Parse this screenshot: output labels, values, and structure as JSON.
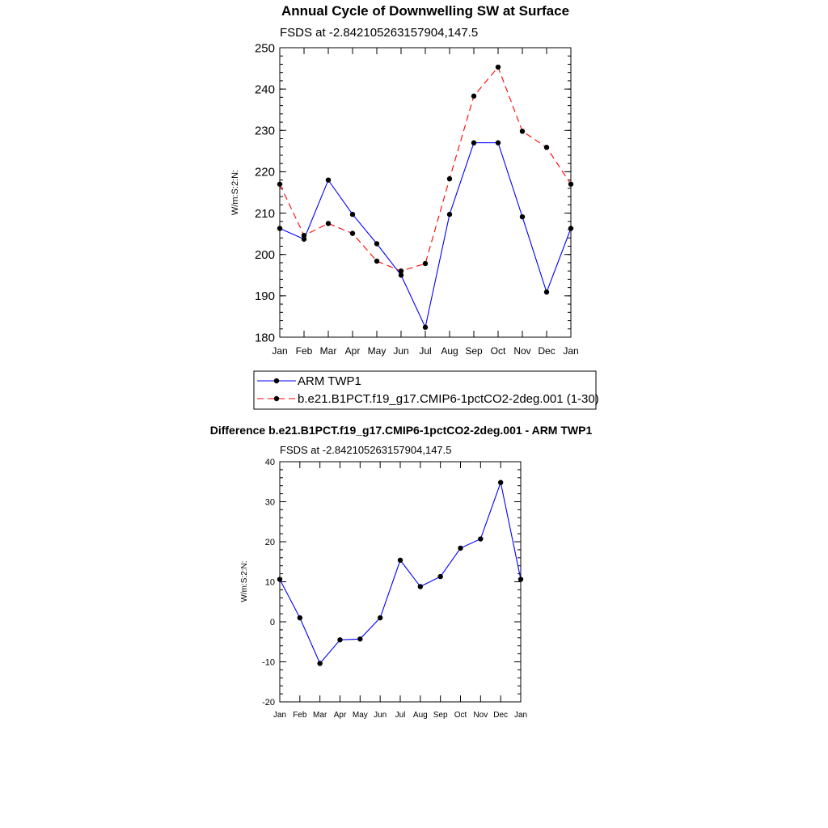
{
  "chart_data": [
    {
      "type": "line",
      "title": "Annual Cycle of Downwelling SW at Surface",
      "subtitle": "FSDS at -2.842105263157904,147.5",
      "ylabel": "W/m:S:2:N:",
      "xlabel": "",
      "categories": [
        "Jan",
        "Feb",
        "Mar",
        "Apr",
        "May",
        "Jun",
        "Jul",
        "Aug",
        "Sep",
        "Oct",
        "Nov",
        "Dec",
        "Jan"
      ],
      "ylim": [
        180,
        250
      ],
      "yticks": [
        180,
        190,
        200,
        210,
        220,
        230,
        240,
        250
      ],
      "legend_position": "below",
      "series": [
        {
          "name": "ARM TWP1",
          "color": "#0000ff",
          "dash": "solid",
          "values": [
            206.3,
            203.7,
            218.0,
            209.7,
            202.6,
            195.0,
            182.4,
            209.7,
            227.0,
            227.0,
            209.1,
            190.9,
            206.3
          ]
        },
        {
          "name": "b.e21.B1PCT.f19_g17.CMIP6-1pctCO2-2deg.001 (1-30)",
          "color": "#ff0000",
          "dash": "dashed",
          "values": [
            217.0,
            204.6,
            207.5,
            205.1,
            198.4,
            196.0,
            197.8,
            218.3,
            238.3,
            245.3,
            229.8,
            225.9,
            217.0
          ]
        }
      ]
    },
    {
      "type": "line",
      "title": "Difference b.e21.B1PCT.f19_g17.CMIP6-1pctCO2-2deg.001 - ARM TWP1",
      "subtitle": "FSDS at -2.842105263157904,147.5",
      "ylabel": "W/m:S:2:N:",
      "xlabel": "",
      "categories": [
        "Jan",
        "Feb",
        "Mar",
        "Apr",
        "May",
        "Jun",
        "Jul",
        "Aug",
        "Sep",
        "Oct",
        "Nov",
        "Dec",
        "Jan"
      ],
      "ylim": [
        -20,
        40
      ],
      "yticks": [
        -20,
        -10,
        0,
        10,
        20,
        30,
        40
      ],
      "series": [
        {
          "name": "Difference",
          "color": "#0000ff",
          "dash": "solid",
          "values": [
            10.6,
            1.0,
            -10.4,
            -4.5,
            -4.3,
            1.0,
            15.4,
            8.8,
            11.3,
            18.4,
            20.7,
            34.8,
            10.6
          ]
        }
      ]
    }
  ]
}
